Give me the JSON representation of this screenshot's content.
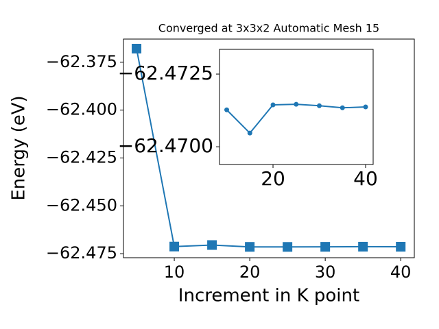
{
  "chart_data": [
    {
      "type": "line",
      "title": "Converged at 3x3x2 Automatic Mesh 15",
      "xlabel": "Increment in K point",
      "ylabel": "Energy (eV)",
      "x": [
        5,
        10,
        15,
        20,
        25,
        30,
        35,
        40
      ],
      "values": [
        -62.3679,
        -62.47127,
        -62.47047,
        -62.47144,
        -62.47146,
        -62.47141,
        -62.47134,
        -62.47137
      ],
      "color": "#1f77b4",
      "marker": "square",
      "xlim": [
        3.27,
        41.8
      ],
      "ylim": [
        -62.4771,
        -62.3629
      ],
      "xticks": [
        10,
        20,
        30,
        40
      ],
      "yticks": [
        {
          "value": -62.475,
          "label": "−62.475"
        },
        {
          "value": -62.45,
          "label": "−62.450"
        },
        {
          "value": -62.425,
          "label": "−62.425"
        },
        {
          "value": -62.4,
          "label": "−62.400"
        },
        {
          "value": -62.375,
          "label": "−62.375"
        }
      ]
    },
    {
      "type": "line",
      "x": [
        10,
        15,
        20,
        25,
        30,
        35,
        40
      ],
      "values": [
        -62.47127,
        -62.47047,
        -62.47144,
        -62.47146,
        -62.47141,
        -62.47134,
        -62.47137
      ],
      "color": "#1f77b4",
      "marker": "circle",
      "xlim": [
        8.44,
        41.63
      ],
      "ylim": [
        -62.46939,
        -62.47335
      ],
      "xticks": [
        20,
        40
      ],
      "yticks": [
        {
          "value": -62.47,
          "label": "−62.4700"
        },
        {
          "value": -62.4725,
          "label": "−62.4725"
        }
      ]
    }
  ]
}
